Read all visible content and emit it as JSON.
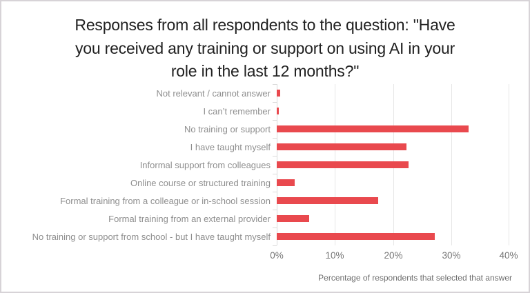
{
  "window": {
    "background": "#ffffff",
    "border_color": "#d7d3d7"
  },
  "title": {
    "text": "Responses from all respondents to the question: \"Have you received any training or support on using AI in your role in the last 12 months?\"",
    "lines": [
      "Responses from all respondents to the question: \"Have",
      "you received any training or support on using AI in your",
      "role in the last 12 months?\""
    ],
    "color": "#212121"
  },
  "chart_data": {
    "type": "bar",
    "orientation": "horizontal",
    "title": "Responses from all respondents to the question: \"Have you received any training or support on using AI in your role in the last 12 months?\"",
    "categories": [
      "Not relevant / cannot answer",
      "I can’t remember",
      "No training or support",
      "I have taught myself",
      "Informal support from colleagues",
      "Online course or structured training",
      "Formal training from a colleague or in-school session",
      "Formal training from an external provider",
      "No training or support from school - but I have taught myself"
    ],
    "values": [
      0.6,
      0.4,
      33,
      22.3,
      22.7,
      3.1,
      17.5,
      5.6,
      27.2
    ],
    "x_ticks": [
      0,
      10,
      20,
      30,
      40
    ],
    "x_tick_labels": [
      "0%",
      "10%",
      "20%",
      "30%",
      "40%"
    ],
    "xlim": [
      0,
      40
    ],
    "xlabel": "Percentage of respondents that selected that answer",
    "ylabel": "",
    "bar_color": "#e9494e",
    "gridline_color": "#e5e5e5",
    "label_color": "#8e8e8e",
    "tick_label_color": "#757575",
    "grid": "vertical-only",
    "legend": "none"
  }
}
